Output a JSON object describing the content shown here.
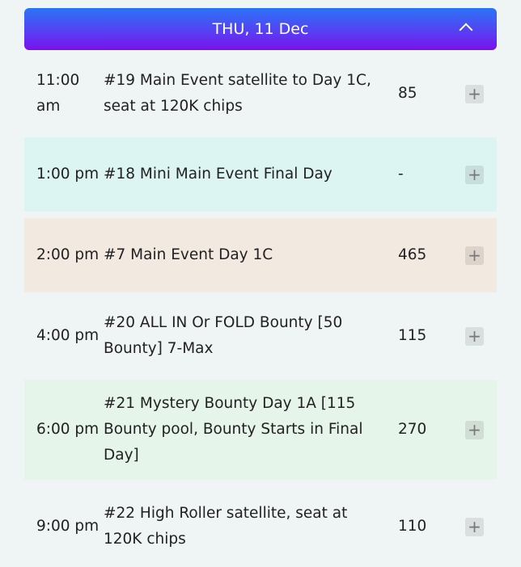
{
  "header": {
    "date": "THU, 11 Dec",
    "collapse_icon": "chevron-up-icon",
    "gradient": [
      "#2a74f6",
      "#7a10ee"
    ]
  },
  "events": [
    {
      "time": "11:00 am",
      "name": "#19 Main Event satellite to Day 1C, seat at 120K chips",
      "seats": "85",
      "bg": "#eff4f5"
    },
    {
      "time": "1:00 pm",
      "name": "#18 Mini Main Event Final Day",
      "seats": "-",
      "bg": "#dcf5f2"
    },
    {
      "time": "2:00 pm",
      "name": "#7 Main Event Day 1C",
      "seats": "465",
      "bg": "#f2e9e0"
    },
    {
      "time": "4:00 pm",
      "name": "#20 ALL IN Or FOLD Bounty [50 Bounty] 7-Max",
      "seats": "115",
      "bg": "#eff4f5"
    },
    {
      "time": "6:00 pm",
      "name": "#21 Mystery Bounty Day 1A [115 Bounty pool, Bounty Starts in Final Day]",
      "seats": "270",
      "bg": "#e5f5e9"
    },
    {
      "time": "9:00 pm",
      "name": "#22 High Roller satellite, seat at 120K chips",
      "seats": "110",
      "bg": "#eff4f5"
    }
  ],
  "add_icon": "plus-icon"
}
